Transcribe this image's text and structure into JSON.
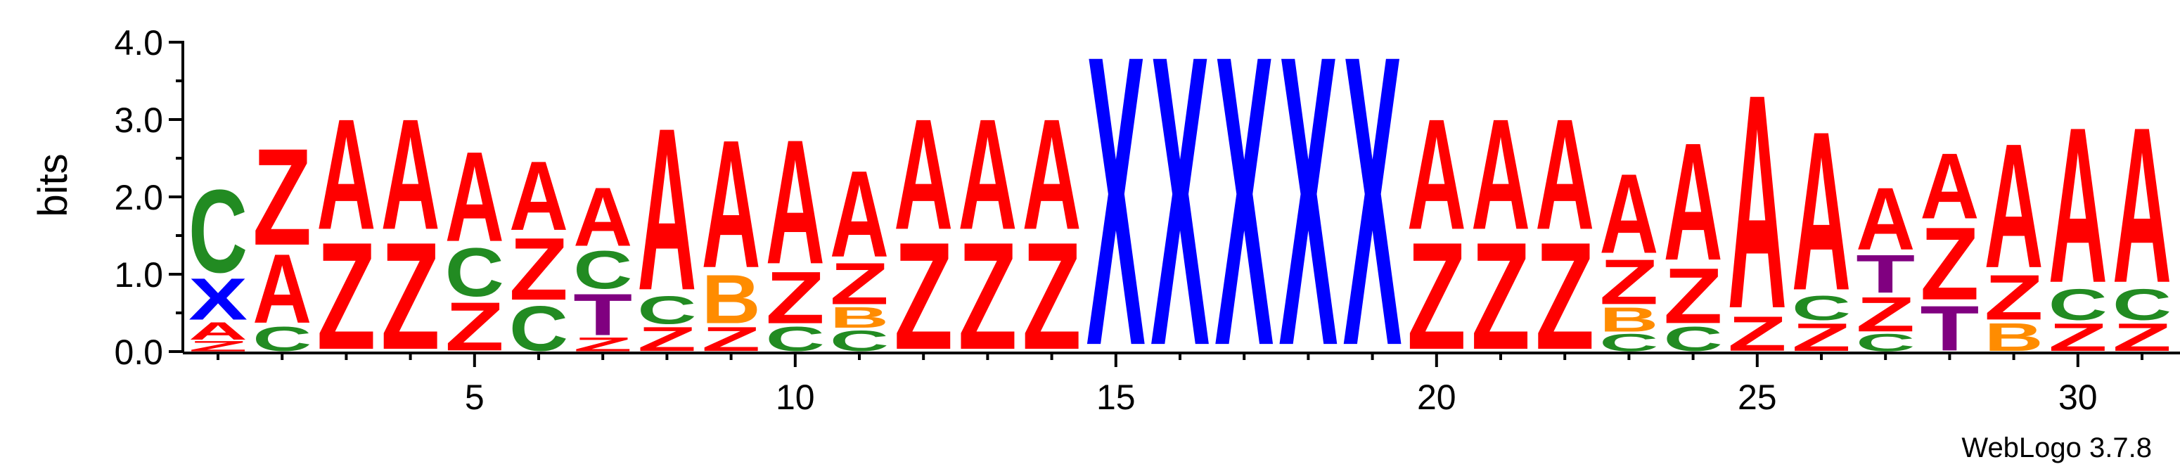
{
  "chart_data": {
    "type": "sequence-logo",
    "ylabel": "bits",
    "ylim": [
      0,
      4.0
    ],
    "y_ticks": [
      "0.0",
      "1.0",
      "2.0",
      "3.0",
      "4.0"
    ],
    "y_tick_values": [
      0,
      1,
      2,
      3,
      4
    ],
    "x_ticks": [
      "5",
      "10",
      "15",
      "20",
      "25",
      "30"
    ],
    "x_tick_values": [
      5,
      10,
      15,
      20,
      25,
      30
    ],
    "colors": {
      "A": "#ff0000",
      "Z": "#ff0000",
      "C": "#228b22",
      "X": "#0000ff",
      "T": "#800080",
      "B": "#ff8c00"
    },
    "positions": [
      {
        "pos": 1,
        "stack": [
          {
            "letter": "Z",
            "bits": 0.15
          },
          {
            "letter": "A",
            "bits": 0.25
          },
          {
            "letter": "X",
            "bits": 0.6
          },
          {
            "letter": "C",
            "bits": 1.2
          }
        ]
      },
      {
        "pos": 2,
        "stack": [
          {
            "letter": "C",
            "bits": 0.35
          },
          {
            "letter": "A",
            "bits": 1.0
          },
          {
            "letter": "Z",
            "bits": 1.4
          }
        ]
      },
      {
        "pos": 3,
        "stack": [
          {
            "letter": "Z",
            "bits": 1.55
          },
          {
            "letter": "A",
            "bits": 1.6
          }
        ]
      },
      {
        "pos": 4,
        "stack": [
          {
            "letter": "Z",
            "bits": 1.55
          },
          {
            "letter": "A",
            "bits": 1.6
          }
        ]
      },
      {
        "pos": 5,
        "stack": [
          {
            "letter": "Z",
            "bits": 0.7
          },
          {
            "letter": "C",
            "bits": 0.7
          },
          {
            "letter": "A",
            "bits": 1.3
          }
        ]
      },
      {
        "pos": 6,
        "stack": [
          {
            "letter": "C",
            "bits": 0.65
          },
          {
            "letter": "Z",
            "bits": 0.9
          },
          {
            "letter": "A",
            "bits": 1.0
          }
        ]
      },
      {
        "pos": 7,
        "stack": [
          {
            "letter": "Z",
            "bits": 0.2
          },
          {
            "letter": "T",
            "bits": 0.6
          },
          {
            "letter": "C",
            "bits": 0.55
          },
          {
            "letter": "A",
            "bits": 0.85
          }
        ]
      },
      {
        "pos": 8,
        "stack": [
          {
            "letter": "Z",
            "bits": 0.35
          },
          {
            "letter": "C",
            "bits": 0.4
          },
          {
            "letter": "A",
            "bits": 2.35
          }
        ]
      },
      {
        "pos": 9,
        "stack": [
          {
            "letter": "Z",
            "bits": 0.35
          },
          {
            "letter": "B",
            "bits": 0.7
          },
          {
            "letter": "A",
            "bits": 1.85
          }
        ]
      },
      {
        "pos": 10,
        "stack": [
          {
            "letter": "C",
            "bits": 0.35
          },
          {
            "letter": "Z",
            "bits": 0.75
          },
          {
            "letter": "A",
            "bits": 1.8
          }
        ]
      },
      {
        "pos": 11,
        "stack": [
          {
            "letter": "C",
            "bits": 0.3
          },
          {
            "letter": "B",
            "bits": 0.3
          },
          {
            "letter": "Z",
            "bits": 0.6
          },
          {
            "letter": "A",
            "bits": 1.25
          }
        ]
      },
      {
        "pos": 12,
        "stack": [
          {
            "letter": "Z",
            "bits": 1.55
          },
          {
            "letter": "A",
            "bits": 1.6
          }
        ]
      },
      {
        "pos": 13,
        "stack": [
          {
            "letter": "Z",
            "bits": 1.55
          },
          {
            "letter": "A",
            "bits": 1.6
          }
        ]
      },
      {
        "pos": 14,
        "stack": [
          {
            "letter": "Z",
            "bits": 1.55
          },
          {
            "letter": "A",
            "bits": 1.6
          }
        ]
      },
      {
        "pos": 15,
        "stack": [
          {
            "letter": "X",
            "bits": 4.2
          }
        ]
      },
      {
        "pos": 16,
        "stack": [
          {
            "letter": "X",
            "bits": 4.2
          }
        ]
      },
      {
        "pos": 17,
        "stack": [
          {
            "letter": "X",
            "bits": 4.2
          }
        ]
      },
      {
        "pos": 18,
        "stack": [
          {
            "letter": "X",
            "bits": 4.2
          }
        ]
      },
      {
        "pos": 19,
        "stack": [
          {
            "letter": "X",
            "bits": 4.2
          }
        ]
      },
      {
        "pos": 20,
        "stack": [
          {
            "letter": "Z",
            "bits": 1.55
          },
          {
            "letter": "A",
            "bits": 1.6
          }
        ]
      },
      {
        "pos": 21,
        "stack": [
          {
            "letter": "Z",
            "bits": 1.55
          },
          {
            "letter": "A",
            "bits": 1.6
          }
        ]
      },
      {
        "pos": 22,
        "stack": [
          {
            "letter": "Z",
            "bits": 1.55
          },
          {
            "letter": "A",
            "bits": 1.6
          }
        ]
      },
      {
        "pos": 23,
        "stack": [
          {
            "letter": "C",
            "bits": 0.25
          },
          {
            "letter": "B",
            "bits": 0.35
          },
          {
            "letter": "Z",
            "bits": 0.65
          },
          {
            "letter": "A",
            "bits": 1.15
          }
        ]
      },
      {
        "pos": 24,
        "stack": [
          {
            "letter": "C",
            "bits": 0.35
          },
          {
            "letter": "Z",
            "bits": 0.8
          },
          {
            "letter": "A",
            "bits": 1.7
          }
        ]
      },
      {
        "pos": 25,
        "stack": [
          {
            "letter": "Z",
            "bits": 0.5
          },
          {
            "letter": "A",
            "bits": 3.1
          }
        ]
      },
      {
        "pos": 26,
        "stack": [
          {
            "letter": "Z",
            "bits": 0.4
          },
          {
            "letter": "C",
            "bits": 0.35
          },
          {
            "letter": "A",
            "bits": 2.3
          }
        ]
      },
      {
        "pos": 27,
        "stack": [
          {
            "letter": "C",
            "bits": 0.25
          },
          {
            "letter": "Z",
            "bits": 0.5
          },
          {
            "letter": "T",
            "bits": 0.55
          },
          {
            "letter": "A",
            "bits": 0.9
          }
        ]
      },
      {
        "pos": 28,
        "stack": [
          {
            "letter": "T",
            "bits": 0.65
          },
          {
            "letter": "Z",
            "bits": 1.05
          },
          {
            "letter": "A",
            "bits": 0.95
          }
        ]
      },
      {
        "pos": 29,
        "stack": [
          {
            "letter": "B",
            "bits": 0.4
          },
          {
            "letter": "Z",
            "bits": 0.65
          },
          {
            "letter": "A",
            "bits": 1.8
          }
        ]
      },
      {
        "pos": 30,
        "stack": [
          {
            "letter": "Z",
            "bits": 0.4
          },
          {
            "letter": "C",
            "bits": 0.45
          },
          {
            "letter": "A",
            "bits": 2.25
          }
        ]
      },
      {
        "pos": 31,
        "stack": [
          {
            "letter": "Z",
            "bits": 0.4
          },
          {
            "letter": "C",
            "bits": 0.45
          },
          {
            "letter": "A",
            "bits": 2.25
          }
        ]
      }
    ]
  },
  "credit": "WebLogo 3.7.8"
}
